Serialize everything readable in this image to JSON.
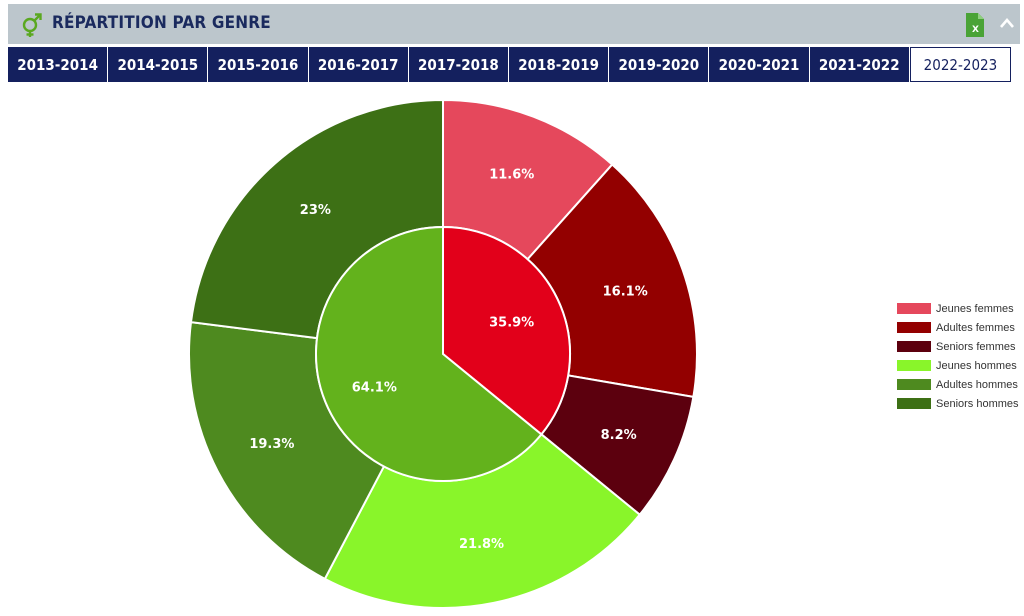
{
  "header": {
    "title": "RÉPARTITION PAR GENRE",
    "icons": [
      "gender-icon",
      "excel-export-icon",
      "chevron-up-icon"
    ]
  },
  "tabs": [
    {
      "label": "2013-2014",
      "active": false
    },
    {
      "label": "2014-2015",
      "active": false
    },
    {
      "label": "2015-2016",
      "active": false
    },
    {
      "label": "2016-2017",
      "active": false
    },
    {
      "label": "2017-2018",
      "active": false
    },
    {
      "label": "2018-2019",
      "active": false
    },
    {
      "label": "2019-2020",
      "active": false
    },
    {
      "label": "2020-2021",
      "active": false
    },
    {
      "label": "2021-2022",
      "active": false
    },
    {
      "label": "2022-2023",
      "active": true
    }
  ],
  "chart_data": {
    "type": "pie",
    "inner": [
      {
        "label": "35.9%",
        "value": 35.9,
        "color": "#e2001a"
      },
      {
        "label": "64.1%",
        "value": 64.1,
        "color": "#63b21c"
      }
    ],
    "outer": [
      {
        "name": "Jeunes femmes",
        "label": "11.6%",
        "value": 11.6,
        "color": "#e5485c"
      },
      {
        "name": "Adultes femmes",
        "label": "16.1%",
        "value": 16.1,
        "color": "#930000"
      },
      {
        "name": "Seniors femmes",
        "label": "8.2%",
        "value": 8.2,
        "color": "#5c000e"
      },
      {
        "name": "Jeunes hommes",
        "label": "21.8%",
        "value": 21.8,
        "color": "#89f52a"
      },
      {
        "name": "Adultes hommes",
        "label": "19.3%",
        "value": 19.3,
        "color": "#4e8a1f"
      },
      {
        "name": "Seniors hommes",
        "label": "23%",
        "value": 23.0,
        "color": "#3d7015"
      }
    ],
    "legend_position": "right"
  }
}
